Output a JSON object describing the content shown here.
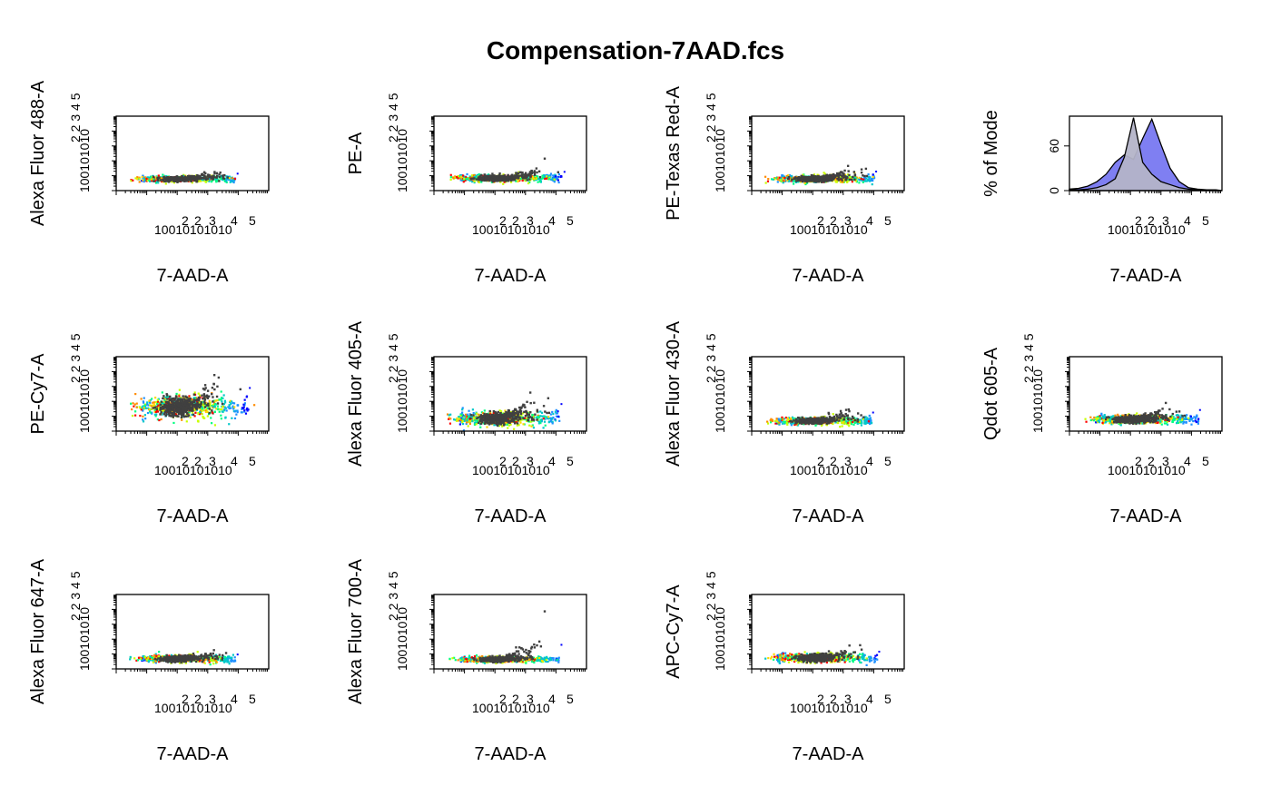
{
  "chart_data": {
    "type": "scatter",
    "title": "Compensation-7AAD.fcs",
    "log_x_ticks": [
      "10",
      "0",
      "10",
      "2",
      "10",
      "3",
      "10",
      "4",
      "10",
      "5"
    ],
    "log_y_ticks": [
      "10",
      "0",
      "10",
      "2",
      "10",
      "3",
      "10",
      "4",
      "10",
      "5"
    ],
    "hist_y_ticks": [
      "0",
      "60"
    ],
    "panels": [
      {
        "xlabel": "7-AAD-A",
        "ylabel": "Alexa Fluor 488-A",
        "kind": "density",
        "y_center": 0.85,
        "y_spread": 0.08,
        "tail_up": 0.25,
        "x_min": 0.4,
        "x_max": 4.1
      },
      {
        "xlabel": "7-AAD-A",
        "ylabel": "PE-A",
        "kind": "density",
        "y_center": 0.9,
        "y_spread": 0.1,
        "tail_up": 0.3,
        "x_min": 0.4,
        "x_max": 4.4
      },
      {
        "xlabel": "7-AAD-A",
        "ylabel": "PE-Texas Red-A",
        "kind": "density",
        "y_center": 0.85,
        "y_spread": 0.1,
        "tail_up": 0.35,
        "x_min": 0.4,
        "x_max": 4.2
      },
      {
        "xlabel": "7-AAD-A",
        "ylabel": "% of Mode",
        "kind": "histogram",
        "ylim": [
          0,
          100
        ]
      },
      {
        "xlabel": "7-AAD-A",
        "ylabel": "PE-Cy7-A",
        "kind": "density",
        "y_center": 1.7,
        "y_spread": 0.35,
        "tail_up": 0.9,
        "x_min": 0.4,
        "x_max": 4.5
      },
      {
        "xlabel": "7-AAD-A",
        "ylabel": "Alexa Fluor 405-A",
        "kind": "density",
        "y_center": 0.9,
        "y_spread": 0.2,
        "tail_up": 0.7,
        "x_min": 0.4,
        "x_max": 4.3
      },
      {
        "xlabel": "7-AAD-A",
        "ylabel": "Alexa Fluor 430-A",
        "kind": "density",
        "y_center": 0.75,
        "y_spread": 0.1,
        "tail_up": 0.4,
        "x_min": 0.4,
        "x_max": 4.1
      },
      {
        "xlabel": "7-AAD-A",
        "ylabel": "Qdot 605-A",
        "kind": "density",
        "y_center": 0.85,
        "y_spread": 0.12,
        "tail_up": 0.45,
        "x_min": 0.4,
        "x_max": 4.4
      },
      {
        "xlabel": "7-AAD-A",
        "ylabel": "Alexa Fluor 647-A",
        "kind": "density",
        "y_center": 0.75,
        "y_spread": 0.1,
        "tail_up": 0.2,
        "x_min": 0.4,
        "x_max": 4.1
      },
      {
        "xlabel": "7-AAD-A",
        "ylabel": "Alexa Fluor 700-A",
        "kind": "density",
        "y_center": 0.7,
        "y_spread": 0.08,
        "tail_up": 0.7,
        "x_min": 0.4,
        "x_max": 4.3
      },
      {
        "xlabel": "7-AAD-A",
        "ylabel": "APC-Cy7-A",
        "kind": "density",
        "y_center": 0.8,
        "y_spread": 0.12,
        "tail_up": 0.3,
        "x_min": 0.4,
        "x_max": 4.3
      }
    ],
    "histogram": {
      "x": [
        0.0,
        0.3,
        0.6,
        0.9,
        1.2,
        1.5,
        1.8,
        2.1,
        2.4,
        2.7,
        3.0,
        3.3,
        3.6,
        3.9,
        4.2,
        4.5,
        4.8,
        5.0
      ],
      "series": [
        {
          "values": [
            2,
            3,
            6,
            12,
            22,
            38,
            48,
            42,
            70,
            96,
            62,
            30,
            12,
            4,
            2,
            1,
            1,
            0
          ],
          "color": "#7f7ff2"
        },
        {
          "values": [
            1,
            1,
            2,
            4,
            8,
            16,
            45,
            98,
            38,
            22,
            12,
            8,
            4,
            2,
            1,
            0,
            0,
            0
          ],
          "color": "#b4b4c8"
        }
      ]
    },
    "density_colors": [
      "#0000ff",
      "#1e90ff",
      "#00c8c8",
      "#00ff80",
      "#c8ff00",
      "#ffd700",
      "#ff8c00",
      "#ff0000"
    ],
    "gate_color": "#404040",
    "x_range": [
      0,
      5
    ],
    "y_range": [
      0,
      5
    ]
  }
}
